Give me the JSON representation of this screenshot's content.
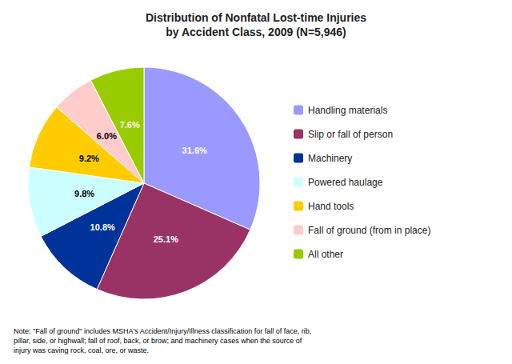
{
  "chart_data": {
    "type": "pie",
    "title": "Distribution of Nonfatal Lost-time Injuries\nby Accident Class, 2009 (N=5,946)",
    "categories": [
      "Handling materials",
      "Slip or fall of person",
      "Machinery",
      "Powered haulage",
      "Hand tools",
      "Fall of ground (from in place)",
      "All other"
    ],
    "values": [
      31.6,
      25.1,
      10.8,
      9.8,
      9.2,
      6.0,
      7.6
    ],
    "value_labels": [
      "31.6%",
      "25.1%",
      "10.8%",
      "9.8%",
      "9.2%",
      "6.0%",
      "7.6%"
    ],
    "colors": [
      "#9999FF",
      "#993366",
      "#003399",
      "#CCFFFF",
      "#FFCC00",
      "#FFCCCC",
      "#99CC00"
    ],
    "data_labels": true,
    "legend": "right",
    "note": "Note: \"Fall of ground\" includes MSHA's Accident/Injury/Illness classification for fall of face, rib,\npillar, side, or highwall; fall of roof, back, or brow; and machinery cases when the source of\ninjury was caving rock, coal, ore, or waste."
  }
}
